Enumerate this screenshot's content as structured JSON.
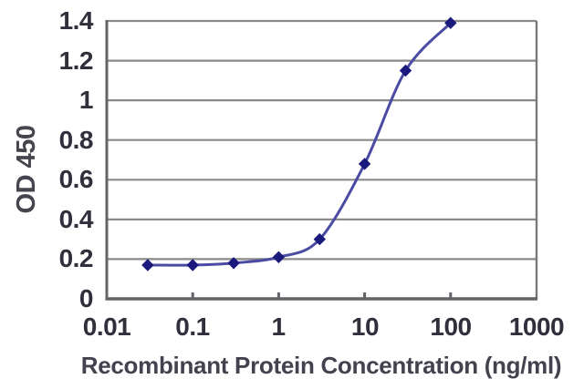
{
  "figure": {
    "background": "#ffffff"
  },
  "chart_data": {
    "type": "line",
    "title": "",
    "xlabel": "Recombinant Protein Concentration (ng/ml)",
    "ylabel": "OD 450",
    "x_scale": "log",
    "xlim": [
      0.01,
      1000
    ],
    "ylim": [
      0,
      1.4
    ],
    "x_ticks": [
      0.01,
      0.1,
      1,
      10,
      100,
      1000
    ],
    "x_tick_labels": [
      "0.01",
      "0.1",
      "1",
      "10",
      "100",
      "1000"
    ],
    "y_ticks": [
      0,
      0.2,
      0.4,
      0.6,
      0.8,
      1,
      1.2,
      1.4
    ],
    "y_tick_labels": [
      "0",
      "0.2",
      "0.4",
      "0.6",
      "0.8",
      "1",
      "1.2",
      "1.4"
    ],
    "grid": "horizontal",
    "legend": "none",
    "series": [
      {
        "marker": "diamond",
        "smooth": true,
        "points": [
          {
            "x": 0.03,
            "y": 0.17
          },
          {
            "x": 0.1,
            "y": 0.17
          },
          {
            "x": 0.3,
            "y": 0.18
          },
          {
            "x": 1,
            "y": 0.21
          },
          {
            "x": 3,
            "y": 0.3
          },
          {
            "x": 10,
            "y": 0.68
          },
          {
            "x": 30,
            "y": 1.15
          },
          {
            "x": 100,
            "y": 1.39
          }
        ]
      }
    ],
    "colors": {
      "line": "#4b4ba3",
      "marker": "#1a1a7e",
      "grid": "#8a8a8a",
      "axis": "#646468",
      "plot_border": "#7a7a7e",
      "tick_text": "#30303c",
      "title_text": "#45454f"
    }
  }
}
